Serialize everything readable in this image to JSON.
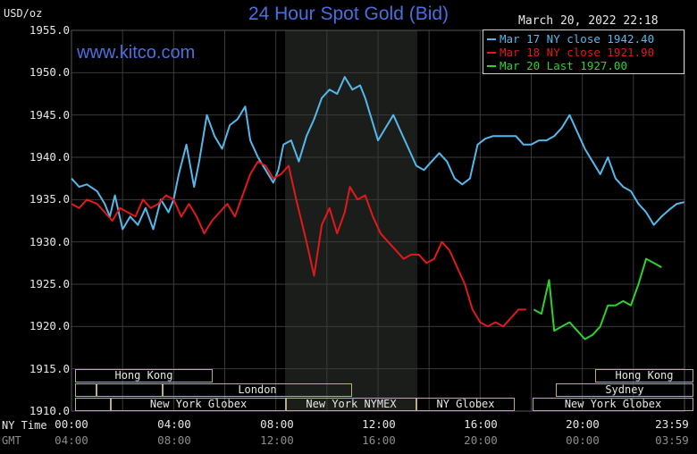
{
  "header": {
    "title": "24 Hour Spot Gold (Bid)",
    "units": "USD/oz",
    "timestamp": "March 20, 2022 22:18",
    "watermark": "www.kitco.com"
  },
  "legend": [
    {
      "label": "Mar 17 NY close 1942.40",
      "color": "#55b8ea"
    },
    {
      "label": "Mar 18 NY close 1921.90",
      "color": "#e01a1a"
    },
    {
      "label": "Mar 20 Last 1927.00",
      "color": "#2ed12e"
    }
  ],
  "axis": {
    "y_ticks": [
      "1955.0",
      "1950.0",
      "1945.0",
      "1940.0",
      "1935.0",
      "1930.0",
      "1925.0",
      "1920.0",
      "1915.0",
      "1910.0"
    ],
    "ny_time_label": "NY Time",
    "gmt_label": "GMT",
    "ny_ticks": [
      "00:00",
      "04:00",
      "08:00",
      "12:00",
      "16:00",
      "20:00",
      "23:59"
    ],
    "gmt_ticks": [
      "04:00",
      "08:00",
      "12:00",
      "16:00",
      "20:00",
      "00:00",
      "03:59"
    ]
  },
  "sessions": {
    "hong_kong_1": "Hong Kong",
    "london": "London",
    "new_york_globex_1": "New York Globex",
    "new_york_nymex": "New York NYMEX",
    "ny_globex": "NY Globex",
    "hong_kong_2": "Hong Kong",
    "sydney": "Sydney",
    "new_york_globex_2": "New York Globex"
  },
  "colors": {
    "background": "#000000",
    "grid": "#3a3a3a",
    "nymex_shade": "#1b1d1b",
    "blue_series": "#55b8ea",
    "red_series": "#e01a1a",
    "green_series": "#2ed12e"
  },
  "chart_data": {
    "type": "line",
    "title": "24 Hour Spot Gold (Bid)",
    "ylabel": "USD/oz",
    "xlabel": "NY Time / GMT",
    "x_unit": "hours since 00:00 NY time",
    "xlim": [
      0,
      24
    ],
    "ylim": [
      1910,
      1955
    ],
    "grid": true,
    "legend_position": "top-right",
    "series": [
      {
        "name": "Mar 17 NY close 1942.40",
        "x": [
          0,
          0.3,
          0.6,
          1,
          1.3,
          1.5,
          1.7,
          2,
          2.3,
          2.6,
          2.9,
          3.2,
          3.5,
          3.8,
          4,
          4.2,
          4.5,
          4.8,
          5,
          5.3,
          5.6,
          5.9,
          6.2,
          6.5,
          6.8,
          7,
          7.3,
          7.6,
          7.9,
          8.1,
          8.3,
          8.6,
          8.9,
          9.2,
          9.5,
          9.8,
          10.1,
          10.4,
          10.7,
          11,
          11.3,
          11.5,
          11.8,
          12,
          12.3,
          12.6,
          12.9,
          13.2,
          13.5,
          13.8,
          14.1,
          14.4,
          14.7,
          15,
          15.3,
          15.6,
          15.9,
          16.2,
          16.5,
          16.8,
          17.1,
          17.4,
          17.7,
          18,
          18.3,
          18.6,
          18.9,
          19.2,
          19.5,
          19.8,
          20.1,
          20.4,
          20.7,
          21,
          21.3,
          21.6,
          21.9,
          22.2,
          22.5,
          22.8,
          23.1,
          23.4,
          23.7,
          23.99
        ],
        "values": [
          1937.5,
          1936.5,
          1936.8,
          1936,
          1934.5,
          1933,
          1935.5,
          1931.5,
          1933,
          1932,
          1934,
          1931.5,
          1935,
          1933.5,
          1935,
          1938,
          1941.5,
          1936.5,
          1939.5,
          1945,
          1942.5,
          1941,
          1943.8,
          1944.5,
          1946,
          1942,
          1940,
          1938.5,
          1937,
          1938.5,
          1941.5,
          1942,
          1939.5,
          1942.5,
          1944.5,
          1947,
          1948,
          1947.5,
          1949.5,
          1948,
          1948.5,
          1947,
          1944,
          1942,
          1943.5,
          1945,
          1943,
          1941,
          1939,
          1938.5,
          1939.5,
          1940.5,
          1939.5,
          1937.5,
          1936.8,
          1937.5,
          1941.5,
          1942.2,
          1942.5,
          1942.5,
          1942.5,
          1942.5,
          1941.5,
          1941.5,
          1942,
          1942,
          1942.5,
          1943.5,
          1945,
          1943,
          1941,
          1939.5,
          1938,
          1940,
          1937.5,
          1936.5,
          1936,
          1934.5,
          1933.5,
          1932,
          1933,
          1933.8,
          1934.5,
          1934.7
        ]
      },
      {
        "name": "Mar 18 NY close 1921.90",
        "x": [
          0,
          0.3,
          0.6,
          1,
          1.3,
          1.6,
          1.9,
          2.2,
          2.5,
          2.8,
          3.1,
          3.4,
          3.7,
          4,
          4.3,
          4.6,
          4.9,
          5.2,
          5.5,
          5.8,
          6.1,
          6.4,
          6.7,
          7,
          7.3,
          7.6,
          7.9,
          8.2,
          8.5,
          8.8,
          9,
          9.2,
          9.5,
          9.8,
          10.1,
          10.4,
          10.7,
          10.9,
          11.2,
          11.5,
          11.8,
          12.1,
          12.4,
          12.7,
          13,
          13.3,
          13.6,
          13.9,
          14.2,
          14.5,
          14.8,
          15.1,
          15.4,
          15.7,
          16,
          16.3,
          16.6,
          16.9,
          17.2,
          17.5,
          17.8
        ],
        "values": [
          1934.5,
          1934,
          1935,
          1934.5,
          1933.5,
          1932.5,
          1934,
          1933.5,
          1933,
          1935,
          1934,
          1934.5,
          1935.5,
          1935,
          1933,
          1934.5,
          1933,
          1931,
          1932.5,
          1933.5,
          1934.5,
          1933,
          1935.5,
          1938,
          1939.5,
          1939,
          1937.5,
          1938,
          1939,
          1935,
          1932.5,
          1930,
          1926,
          1932,
          1934,
          1931,
          1933.5,
          1936.5,
          1935,
          1935.5,
          1933,
          1931,
          1930,
          1929,
          1928,
          1928.5,
          1928.5,
          1927.5,
          1928,
          1930,
          1929,
          1927,
          1925,
          1922,
          1920.5,
          1920,
          1920.5,
          1920,
          1921,
          1922,
          1922
        ]
      },
      {
        "name": "Mar 20 Last 1927.00",
        "x": [
          18.1,
          18.4,
          18.7,
          18.9,
          19.2,
          19.5,
          19.8,
          20.1,
          20.4,
          20.7,
          21,
          21.3,
          21.6,
          21.9,
          22.2,
          22.5,
          22.8,
          23.1
        ],
        "values": [
          1922,
          1921.5,
          1925.5,
          1919.5,
          1920,
          1920.5,
          1919.5,
          1918.5,
          1919,
          1920,
          1922.5,
          1922.5,
          1923,
          1922.5,
          1925,
          1928,
          1927.5,
          1927
        ]
      }
    ]
  }
}
